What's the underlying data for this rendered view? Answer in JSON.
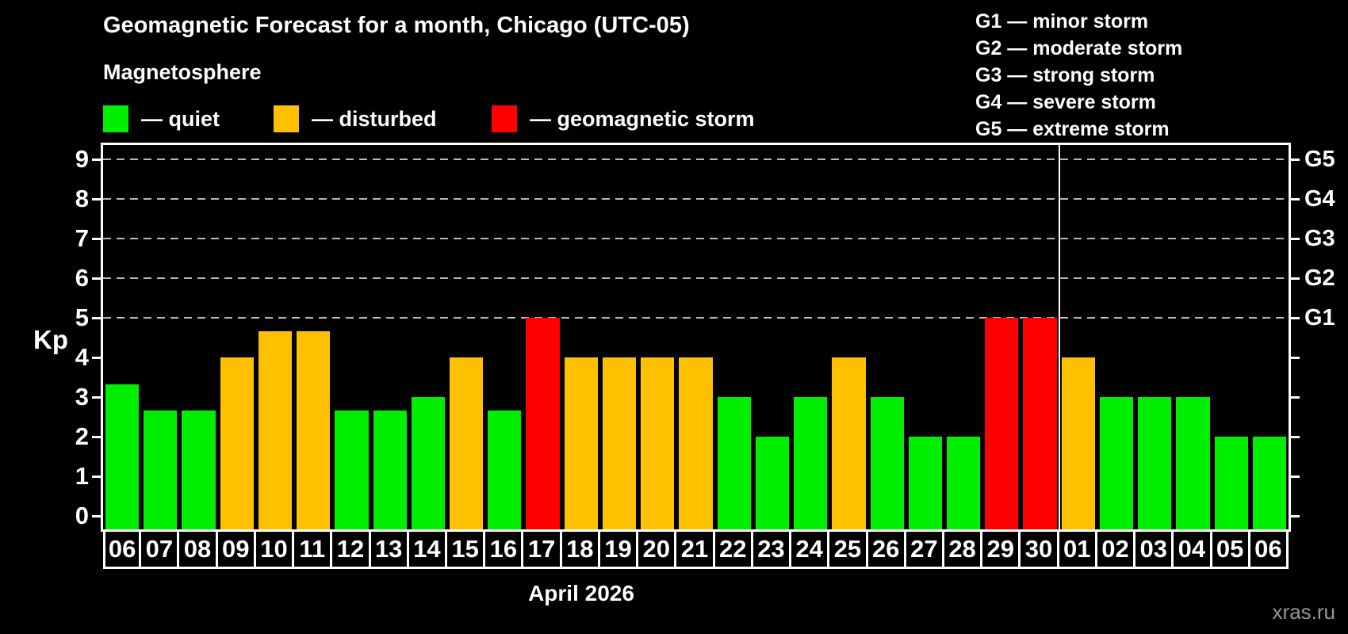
{
  "header": {
    "title": "Geomagnetic Forecast for a month, Chicago (UTC-05)"
  },
  "magnetosphere_legend": {
    "title": "Magnetosphere",
    "items": [
      {
        "status": "quiet",
        "label": "— quiet",
        "color": "#00ee00"
      },
      {
        "status": "disturbed",
        "label": "— disturbed",
        "color": "#ffc000"
      },
      {
        "status": "storm",
        "label": "— geomagnetic storm",
        "color": "#ff0000"
      }
    ]
  },
  "gscale_legend": {
    "items": [
      "G1 — minor storm",
      "G2 — moderate storm",
      "G3 — strong storm",
      "G4 — severe storm",
      "G5 — extreme storm"
    ]
  },
  "watermark": "xras.ru",
  "chart_data": {
    "type": "bar",
    "title": "Geomagnetic Forecast for a month, Chicago (UTC-05)",
    "subtitle": "Magnetosphere",
    "ylabel": "Kp",
    "x_axis_caption": "April 2026",
    "ylim": [
      0,
      9.36
    ],
    "yticks": [
      0,
      1,
      2,
      3,
      4,
      5,
      6,
      7,
      8,
      9
    ],
    "gridlines_at_kp": [
      5,
      6,
      7,
      8,
      9
    ],
    "grid_style": "dashed horizontal lines at storm thresholds",
    "legend_position": "top-left",
    "right_axis_labels": [
      {
        "kp": 5,
        "label": "G1"
      },
      {
        "kp": 6,
        "label": "G2"
      },
      {
        "kp": 7,
        "label": "G3"
      },
      {
        "kp": 8,
        "label": "G4"
      },
      {
        "kp": 9,
        "label": "G5"
      }
    ],
    "categories": [
      "06",
      "07",
      "08",
      "09",
      "10",
      "11",
      "12",
      "13",
      "14",
      "15",
      "16",
      "17",
      "18",
      "19",
      "20",
      "21",
      "22",
      "23",
      "24",
      "25",
      "26",
      "27",
      "28",
      "29",
      "30",
      "01",
      "02",
      "03",
      "04",
      "05",
      "06"
    ],
    "values": [
      3.33,
      2.67,
      2.67,
      4,
      4.67,
      4.67,
      2.67,
      2.67,
      3,
      4,
      2.67,
      5,
      4,
      4,
      4,
      4,
      3,
      2,
      3,
      4,
      3,
      2,
      2,
      5,
      5,
      4,
      3,
      3,
      3,
      2,
      2
    ],
    "statuses": [
      "quiet",
      "quiet",
      "quiet",
      "disturbed",
      "disturbed",
      "disturbed",
      "quiet",
      "quiet",
      "quiet",
      "disturbed",
      "quiet",
      "storm",
      "disturbed",
      "disturbed",
      "disturbed",
      "disturbed",
      "quiet",
      "quiet",
      "quiet",
      "disturbed",
      "quiet",
      "quiet",
      "quiet",
      "storm",
      "storm",
      "disturbed",
      "quiet",
      "quiet",
      "quiet",
      "quiet",
      "quiet"
    ],
    "month_separator_after_index": 25
  }
}
